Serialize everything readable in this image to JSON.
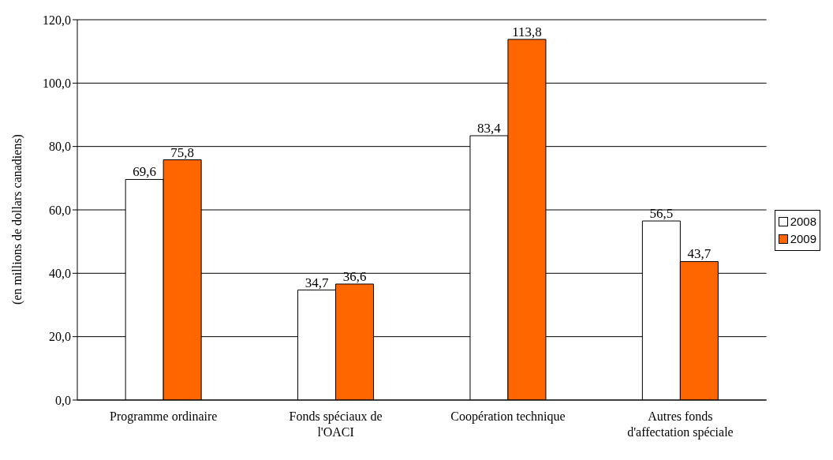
{
  "chart_data": {
    "type": "bar",
    "ylabel": "(en millions de dollars canadiens)",
    "categories": [
      "Programme ordinaire",
      "Fonds spéciaux de l'OACI",
      "Coopération technique",
      "Autres fonds d'affectation spéciale"
    ],
    "series": [
      {
        "name": "2008",
        "color": "#ffffff",
        "values": [
          69.6,
          34.7,
          83.4,
          56.5
        ],
        "value_labels": [
          "69,6",
          "34,7",
          "83,4",
          "56,5"
        ]
      },
      {
        "name": "2009",
        "color": "#ff6600",
        "values": [
          75.8,
          36.6,
          113.8,
          43.7
        ],
        "value_labels": [
          "75,8",
          "36,6",
          "113,8",
          "43,7"
        ]
      }
    ],
    "ylim": [
      0,
      120
    ],
    "yticks": [
      {
        "value": 0,
        "label": "0,0"
      },
      {
        "value": 20,
        "label": "20,0"
      },
      {
        "value": 40,
        "label": "40,0"
      },
      {
        "value": 60,
        "label": "60,0"
      },
      {
        "value": 80,
        "label": "80,0"
      },
      {
        "value": 100,
        "label": "100,0"
      },
      {
        "value": 120,
        "label": "120,0"
      }
    ],
    "grid": "y",
    "legend": "right"
  }
}
